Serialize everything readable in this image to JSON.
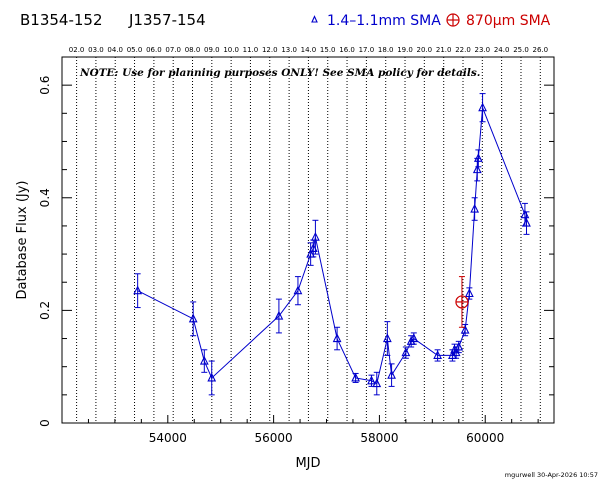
{
  "header": {
    "source_name": "B1354-152",
    "alt_name": "J1357-154",
    "legend_blue": "1.4–1.1mm SMA",
    "legend_red": "870μm SMA",
    "legend_blue_symbol": "triangle-icon",
    "legend_red_symbol": "circle-plus-icon"
  },
  "note": "NOTE: Use for planning purposes ONLY!  See SMA policy for details.",
  "footer": "mgurwell 30-Apr-2026 10:57",
  "colors": {
    "blue": "#0000cc",
    "red": "#cc0000"
  },
  "chart_data": {
    "type": "scatter",
    "xlabel": "MJD",
    "ylabel": "Database Flux (Jy)",
    "xlim": [
      52000,
      61300
    ],
    "ylim": [
      0,
      0.65
    ],
    "xticks": [
      54000,
      56000,
      58000,
      60000
    ],
    "xtick_labels": [
      "54000",
      "56000",
      "58000",
      "60000"
    ],
    "yticks": [
      0,
      0.2,
      0.4,
      0.6
    ],
    "ytick_labels": [
      "0",
      "0.2",
      "0.4",
      "0.6"
    ],
    "top_axis": {
      "labels": [
        "02.0",
        "03.0",
        "04.0",
        "05.0",
        "06.0",
        "07.0",
        "08.0",
        "09.0",
        "10.0",
        "11.0",
        "12.0",
        "13.0",
        "14.0",
        "15.0",
        "16.0",
        "17.0",
        "18.0",
        "19.0",
        "20.0",
        "21.0",
        "22.0",
        "23.0",
        "24.0",
        "25.0",
        "26.0"
      ],
      "mjd": [
        52276,
        52641,
        53006,
        53371,
        53737,
        54102,
        54467,
        54832,
        55197,
        55562,
        55927,
        56293,
        56658,
        57023,
        57388,
        57754,
        58119,
        58484,
        58849,
        59215,
        59580,
        59945,
        60310,
        60676,
        61041
      ]
    },
    "series": [
      {
        "name": "1.4–1.1mm SMA",
        "color": "#0000cc",
        "marker": "triangle",
        "connected": true,
        "x": [
          53430,
          54480,
          54690,
          54830,
          56100,
          56460,
          56700,
          56750,
          56790,
          57200,
          57550,
          57850,
          57950,
          58150,
          58230,
          58500,
          58600,
          58650,
          59100,
          59380,
          59420,
          59450,
          59500,
          59620,
          59700,
          59800,
          59850,
          59870,
          59950,
          60750,
          60780
        ],
        "y": [
          0.235,
          0.185,
          0.11,
          0.08,
          0.19,
          0.235,
          0.3,
          0.31,
          0.33,
          0.15,
          0.08,
          0.075,
          0.07,
          0.15,
          0.085,
          0.125,
          0.145,
          0.15,
          0.12,
          0.12,
          0.13,
          0.125,
          0.135,
          0.165,
          0.23,
          0.38,
          0.45,
          0.47,
          0.56,
          0.37,
          0.355
        ],
        "err": [
          0.03,
          0.03,
          0.02,
          0.03,
          0.03,
          0.025,
          0.02,
          0.015,
          0.03,
          0.02,
          0.008,
          0.01,
          0.02,
          0.03,
          0.02,
          0.01,
          0.01,
          0.01,
          0.01,
          0.01,
          0.01,
          0.01,
          0.01,
          0.01,
          0.01,
          0.02,
          0.02,
          0.015,
          0.025,
          0.02,
          0.02
        ]
      },
      {
        "name": "870μm SMA",
        "color": "#cc0000",
        "marker": "circle-plus",
        "connected": false,
        "x": [
          59560
        ],
        "y": [
          0.215
        ],
        "err": [
          0.045
        ]
      }
    ]
  }
}
